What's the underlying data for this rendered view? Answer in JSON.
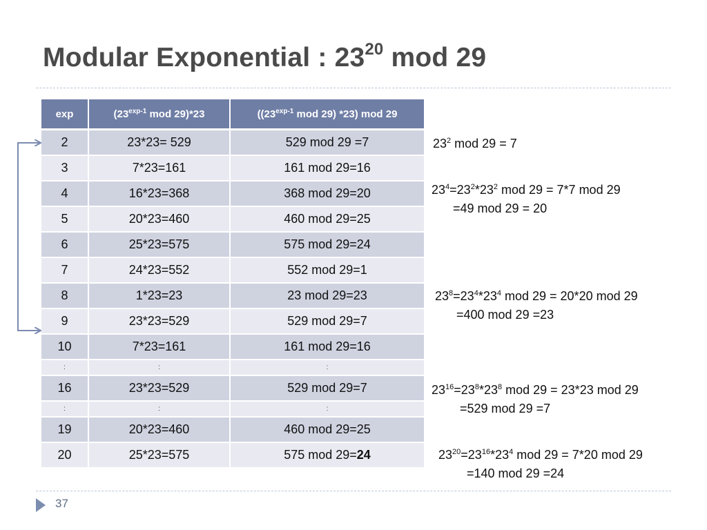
{
  "title": {
    "prefix": "Modular Exponential : 23",
    "sup": "20",
    "suffix": " mod 29"
  },
  "table": {
    "headers": [
      {
        "pre": "exp",
        "sup": "",
        "post": ""
      },
      {
        "pre": "(23",
        "sup": "exp-1",
        "post": " mod 29)*23"
      },
      {
        "pre": "((23",
        "sup": "exp-1",
        "post": " mod 29) *23)  mod 29"
      }
    ],
    "rows": [
      {
        "style": "dark",
        "exp": "2",
        "product": "23*23= 529",
        "result": "529 mod 29 =7",
        "result_bold": ""
      },
      {
        "style": "light",
        "exp": "3",
        "product": "7*23=161",
        "result": "161 mod 29=16",
        "result_bold": ""
      },
      {
        "style": "dark",
        "exp": "4",
        "product": "16*23=368",
        "result": "368 mod 29=20",
        "result_bold": ""
      },
      {
        "style": "light",
        "exp": "5",
        "product": "20*23=460",
        "result": "460 mod 29=25",
        "result_bold": ""
      },
      {
        "style": "dark",
        "exp": "6",
        "product": "25*23=575",
        "result": "575 mod 29=24",
        "result_bold": ""
      },
      {
        "style": "light",
        "exp": "7",
        "product": "24*23=552",
        "result": "552 mod 29=1",
        "result_bold": ""
      },
      {
        "style": "dark",
        "exp": "8",
        "product": "1*23=23",
        "result": "23 mod 29=23",
        "result_bold": ""
      },
      {
        "style": "light",
        "exp": "9",
        "product": "23*23=529",
        "result": "529 mod 29=7",
        "result_bold": ""
      },
      {
        "style": "dark",
        "exp": "10",
        "product": "7*23=161",
        "result": "161 mod 29=16",
        "result_bold": ""
      },
      {
        "style": "light dots",
        "exp": ":",
        "product": ":",
        "result": ":",
        "result_bold": ""
      },
      {
        "style": "dark",
        "exp": "16",
        "product": "23*23=529",
        "result": "529 mod 29=7",
        "result_bold": ""
      },
      {
        "style": "light dots",
        "exp": ":",
        "product": ":",
        "result": ":",
        "result_bold": ""
      },
      {
        "style": "dark",
        "exp": "19",
        "product": "20*23=460",
        "result": "460 mod 29=25",
        "result_bold": ""
      },
      {
        "style": "light",
        "exp": "20",
        "product": "25*23=575",
        "result": "575 mod 29=",
        "result_bold": "24"
      }
    ]
  },
  "notes": {
    "n1": {
      "a": "23",
      "s1": "2",
      "b": " mod 29 = 7"
    },
    "n2": {
      "a": "23",
      "s1": "4",
      "b": "=23",
      "s2": "2",
      "c": "*23",
      "s3": "2",
      "d": " mod 29 = 7*7 mod 29",
      "line2": "=49 mod 29 = 20"
    },
    "n3": {
      "a": "23",
      "s1": "8",
      "b": "=23",
      "s2": "4",
      "c": "*23",
      "s3": "4",
      "d": " mod 29 =  20*20 mod 29",
      "line2": "=400 mod 29 =23"
    },
    "n4": {
      "a": "23",
      "s1": "16",
      "b": "=23",
      "s2": "8",
      "c": "*23",
      "s3": "8",
      "d": " mod 29 = 23*23 mod 29",
      "line2": "=529 mod 29 =7"
    },
    "n5": {
      "a": "23",
      "s1": "20",
      "b": "=23",
      "s2": "16",
      "c": "*23",
      "s3": "4",
      "d": " mod 29 = 7*20 mod 29",
      "line2": "=140 mod 29 =24"
    }
  },
  "footer": {
    "page_number": "37"
  },
  "colors": {
    "header_bg": "#6f7ea5",
    "row_dark": "#cfd3e0",
    "row_light": "#e9eaf1",
    "arrow": "#7a8ab0"
  }
}
